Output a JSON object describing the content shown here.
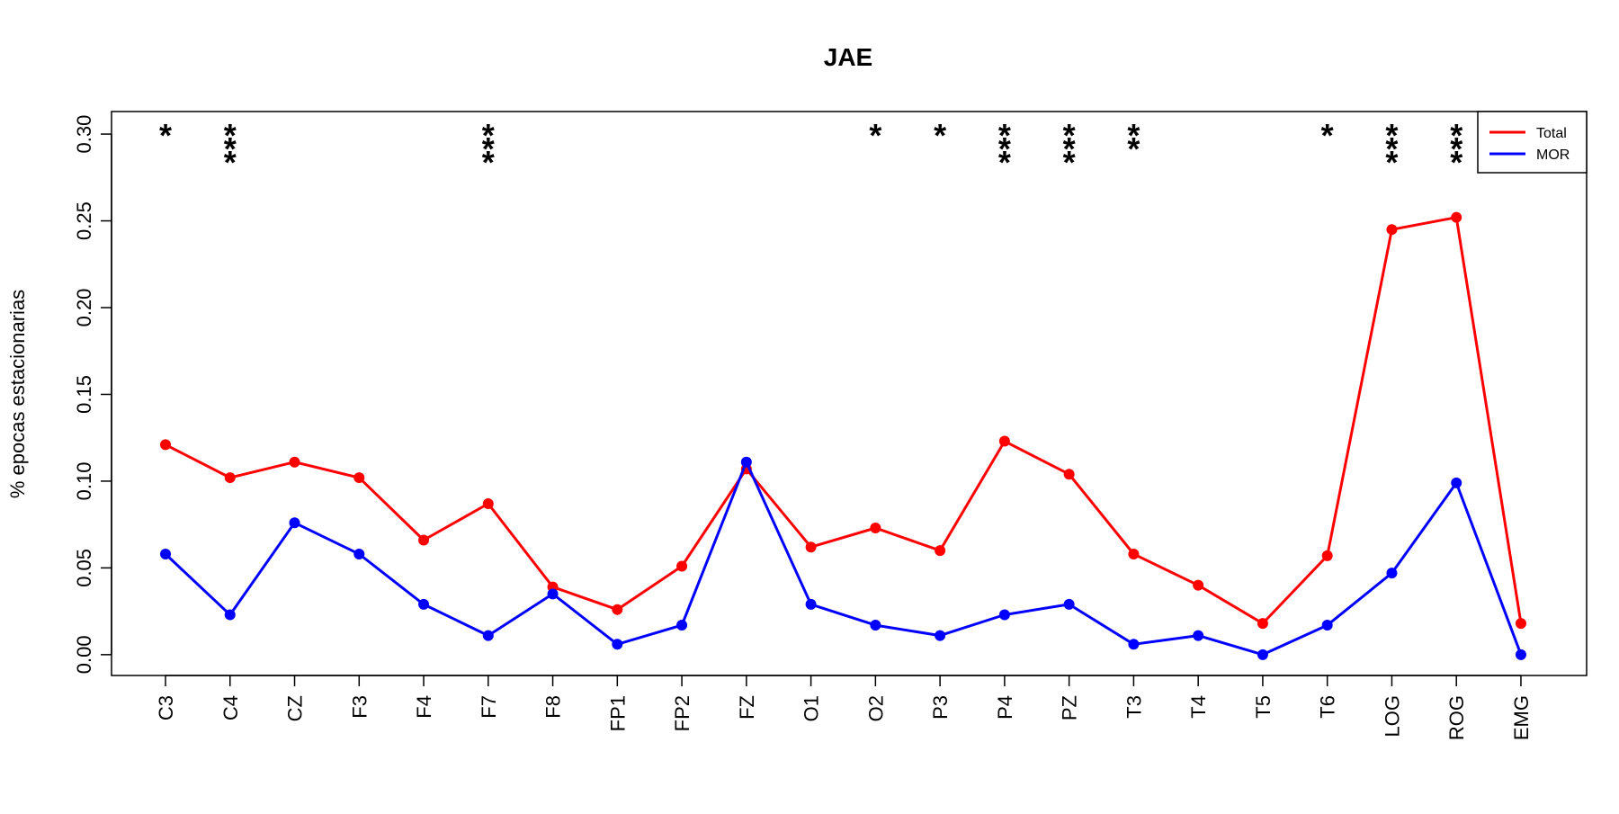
{
  "chart_data": {
    "type": "line",
    "title": "JAE",
    "xlabel": "",
    "ylabel": "% epocas estacionarias",
    "categories": [
      "C3",
      "C4",
      "CZ",
      "F3",
      "F4",
      "F7",
      "F8",
      "FP1",
      "FP2",
      "FZ",
      "O1",
      "O2",
      "P3",
      "P4",
      "PZ",
      "T3",
      "T4",
      "T5",
      "T6",
      "LOG",
      "ROG",
      "EMG"
    ],
    "ylim": [
      -0.012,
      0.313
    ],
    "yticks": [
      "0.00",
      "0.05",
      "0.10",
      "0.15",
      "0.20",
      "0.25",
      "0.30"
    ],
    "grid": false,
    "legend_position": "top-right",
    "series": [
      {
        "name": "Total",
        "color": "#ff0000",
        "values": [
          0.121,
          0.102,
          0.111,
          0.102,
          0.066,
          0.087,
          0.039,
          0.026,
          0.051,
          0.107,
          0.062,
          0.073,
          0.06,
          0.123,
          0.104,
          0.058,
          0.04,
          0.018,
          0.057,
          0.245,
          0.252,
          0.018
        ]
      },
      {
        "name": "MOR",
        "color": "#0000ff",
        "values": [
          0.058,
          0.023,
          0.076,
          0.058,
          0.029,
          0.011,
          0.035,
          0.006,
          0.017,
          0.111,
          0.029,
          0.017,
          0.011,
          0.023,
          0.029,
          0.006,
          0.011,
          0.0,
          0.017,
          0.047,
          0.099,
          0.0
        ]
      }
    ],
    "annotations": [
      "*",
      "***",
      "",
      "",
      "",
      "***",
      "",
      "",
      "",
      "",
      "",
      "*",
      "*",
      "***",
      "***",
      "**",
      "",
      "",
      "*",
      "***",
      "***",
      ""
    ]
  }
}
